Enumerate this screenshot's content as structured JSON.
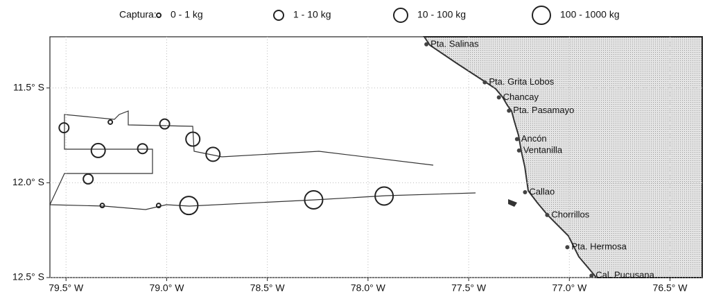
{
  "chart_data": {
    "type": "map",
    "legend_title": "Captura:",
    "xlim": [
      79.58,
      76.34
    ],
    "ylim": [
      11.23,
      12.5
    ],
    "xticks": [
      {
        "value": 79.5,
        "label": "79.5° W"
      },
      {
        "value": 79.0,
        "label": "79.0° W"
      },
      {
        "value": 78.5,
        "label": "78.5° W"
      },
      {
        "value": 78.0,
        "label": "78.0° W"
      },
      {
        "value": 77.5,
        "label": "77.5° W"
      },
      {
        "value": 77.0,
        "label": "77.0° W"
      },
      {
        "value": 76.5,
        "label": "76.5° W"
      }
    ],
    "yticks": [
      {
        "value": 11.5,
        "label": "11.5° S"
      },
      {
        "value": 12.0,
        "label": "12.0° S"
      },
      {
        "value": 12.5,
        "label": "12.5° S"
      }
    ],
    "grid": true,
    "color": "#222222",
    "series": [
      {
        "name": "0 - 1 kg",
        "lon": [
          79.28,
          79.32,
          79.04
        ],
        "lat": [
          11.68,
          12.12,
          12.12
        ]
      },
      {
        "name": "1 - 10 kg",
        "lon": [
          79.51,
          79.01,
          79.12,
          79.39
        ],
        "lat": [
          11.71,
          11.69,
          11.82,
          11.98
        ]
      },
      {
        "name": "10 - 100 kg",
        "lon": [
          79.34,
          78.87,
          78.77
        ],
        "lat": [
          11.83,
          11.77,
          11.85
        ]
      },
      {
        "name": "100 - 1000 kg",
        "lon": [
          78.89,
          78.27,
          77.92
        ],
        "lat": [
          12.12,
          12.09,
          12.07
        ]
      }
    ],
    "places": [
      {
        "name": "Pta. Salinas",
        "lon": 77.71,
        "lat": 11.27
      },
      {
        "name": "Pta. Grita Lobos",
        "lon": 77.42,
        "lat": 11.47
      },
      {
        "name": "Chancay",
        "lon": 77.35,
        "lat": 11.55
      },
      {
        "name": "Pta. Pasamayo",
        "lon": 77.3,
        "lat": 11.62
      },
      {
        "name": "Ancón",
        "lon": 77.26,
        "lat": 11.77
      },
      {
        "name": "Ventanilla",
        "lon": 77.25,
        "lat": 11.83
      },
      {
        "name": "Callao",
        "lon": 77.22,
        "lat": 12.05
      },
      {
        "name": "Chorrillos",
        "lon": 77.11,
        "lat": 12.17
      },
      {
        "name": "Pta. Hermosa",
        "lon": 77.01,
        "lat": 12.34
      },
      {
        "name": "Cal. Pucusana",
        "lon": 76.89,
        "lat": 12.49
      }
    ]
  }
}
